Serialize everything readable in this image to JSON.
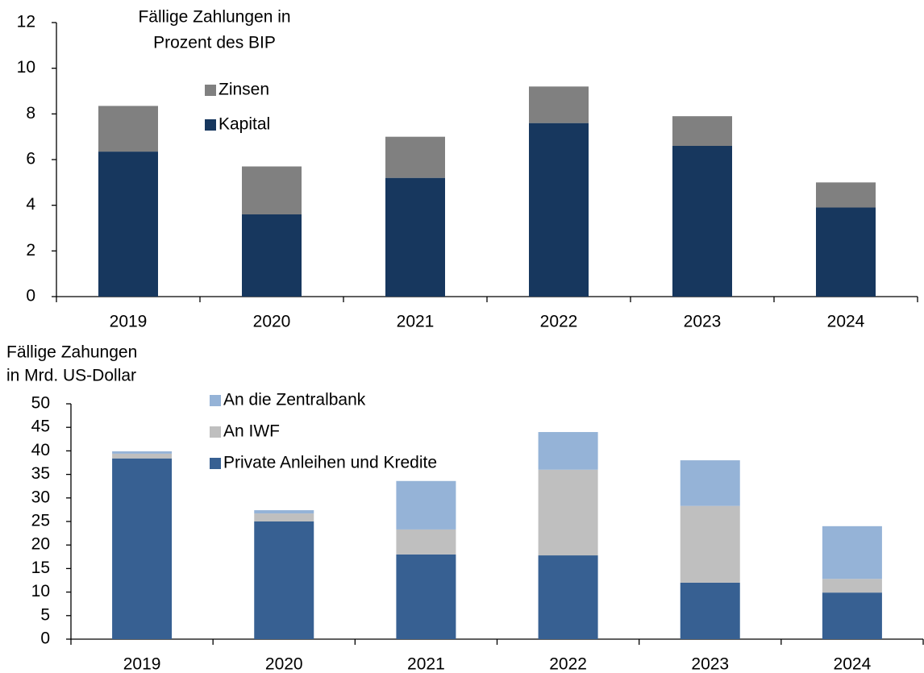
{
  "chart_data": [
    {
      "type": "stacked_bar",
      "title": [
        "Fällige Zahlungen in",
        "Prozent des BIP"
      ],
      "categories": [
        "2019",
        "2020",
        "2021",
        "2022",
        "2023",
        "2024"
      ],
      "series": [
        {
          "name": "Kapital",
          "color": "#17375e",
          "values": [
            6.35,
            3.6,
            5.2,
            7.6,
            6.6,
            3.9
          ]
        },
        {
          "name": "Zinsen",
          "color": "#808080",
          "values": [
            2.0,
            2.1,
            1.8,
            1.6,
            1.3,
            1.1
          ]
        }
      ],
      "ylim": [
        0,
        12
      ],
      "yticks": [
        0,
        2,
        4,
        6,
        8,
        10,
        12
      ]
    },
    {
      "type": "stacked_bar",
      "title": [
        "Fällige Zahungen",
        "in Mrd. US-Dollar"
      ],
      "categories": [
        "2019",
        "2020",
        "2021",
        "2022",
        "2023",
        "2024"
      ],
      "series": [
        {
          "name": "Private Anleihen und Kredite",
          "color": "#376092",
          "values": [
            38.4,
            25.0,
            18.0,
            17.8,
            12.0,
            9.9
          ]
        },
        {
          "name": "An IWF",
          "color": "#bfbfbf",
          "values": [
            1.0,
            1.7,
            5.3,
            18.2,
            16.3,
            2.9
          ]
        },
        {
          "name": "An die Zentralbank",
          "color": "#95b3d7",
          "values": [
            0.5,
            0.7,
            10.3,
            8.0,
            9.7,
            11.2
          ]
        }
      ],
      "ylim": [
        0,
        50
      ],
      "yticks": [
        0,
        5,
        10,
        15,
        20,
        25,
        30,
        35,
        40,
        45,
        50
      ]
    }
  ]
}
